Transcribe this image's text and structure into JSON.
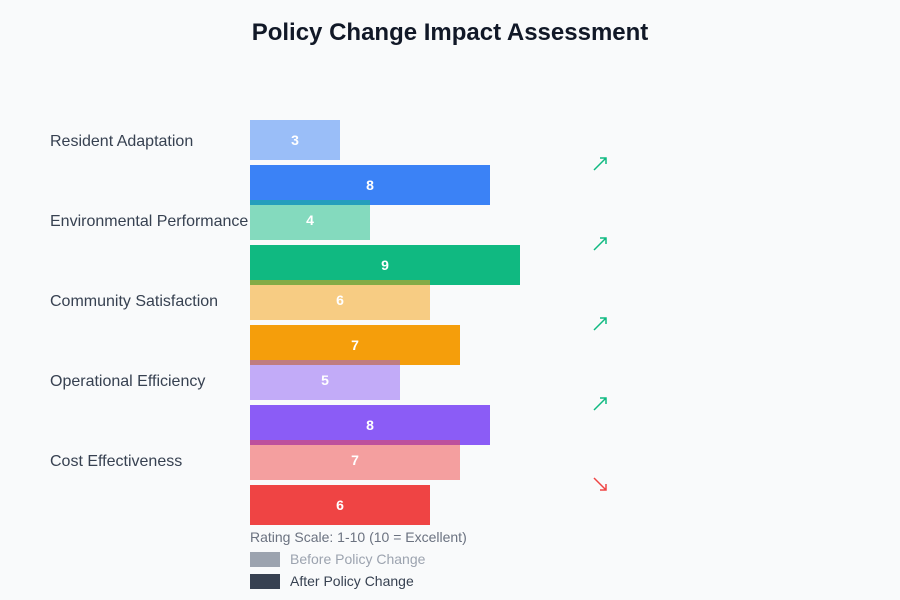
{
  "chart_data": {
    "type": "bar",
    "orientation": "horizontal",
    "title": "Policy Change Impact Assessment",
    "categories": [
      "Resident Adaptation",
      "Environmental Performance",
      "Community Satisfaction",
      "Operational Efficiency",
      "Cost Effectiveness"
    ],
    "series": [
      {
        "name": "Before Policy Change",
        "values": [
          3,
          4,
          6,
          5,
          7
        ]
      },
      {
        "name": "After Policy Change",
        "values": [
          8,
          9,
          7,
          8,
          6
        ]
      }
    ],
    "bar_colors": [
      "#3b82f6",
      "#10b981",
      "#f59e0b",
      "#8b5cf6",
      "#ef4444"
    ],
    "trend": [
      "up",
      "up",
      "up",
      "up",
      "down"
    ],
    "trend_colors": {
      "up": "#10b981",
      "down": "#ef4444"
    },
    "xlim": [
      0,
      10
    ],
    "grid": false,
    "note": "Rating Scale: 1-10 (10 = Excellent)",
    "legend": {
      "placement": "bottom-left",
      "items": [
        {
          "label": "Before Policy Change",
          "color": "#9ca3af"
        },
        {
          "label": "After Policy Change",
          "color": "#374151"
        }
      ]
    }
  }
}
